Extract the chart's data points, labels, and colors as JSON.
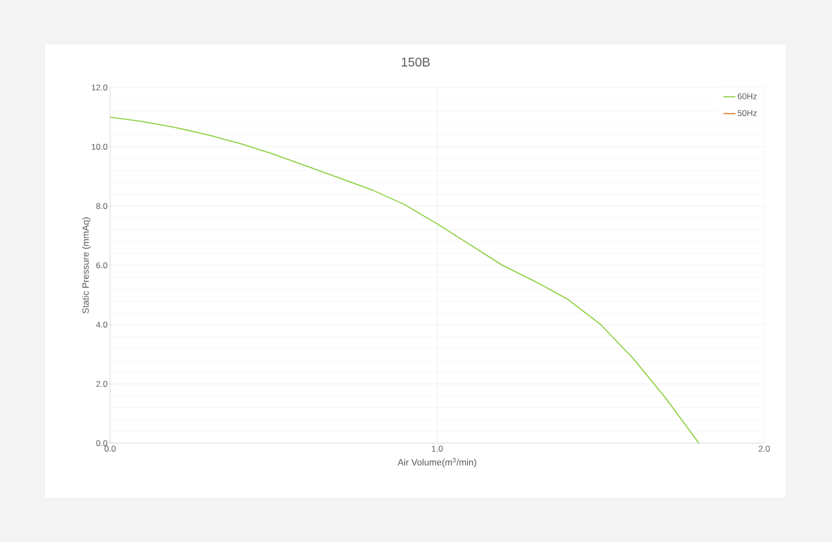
{
  "chart_data": {
    "type": "line",
    "title": "150B",
    "xlabel": "Air Volume(m$^{3}$/min)",
    "ylabel": "Static Pressure (mmAq)",
    "x": [
      0,
      0.1,
      0.2,
      0.3,
      0.4,
      0.5,
      0.6,
      0.7,
      0.8,
      0.9,
      1.0,
      1.1,
      1.2,
      1.3,
      1.4,
      1.5,
      1.6,
      1.7,
      1.8
    ],
    "series": [
      {
        "name": "60Hz",
        "color": "#8ccf3f",
        "values": [
          11.0,
          10.85,
          10.65,
          10.4,
          10.1,
          9.75,
          9.35,
          8.95,
          8.55,
          8.05,
          7.4,
          6.7,
          6.0,
          5.45,
          4.85,
          4.0,
          2.85,
          1.5,
          0.0
        ]
      },
      {
        "name": "50Hz",
        "color": "#ed7d31",
        "values": [
          null,
          null,
          null,
          null,
          null,
          null,
          null,
          null,
          null,
          null,
          null,
          null,
          null,
          null,
          null,
          null,
          null,
          null,
          null
        ]
      }
    ],
    "xlim": [
      0,
      2
    ],
    "ylim": [
      0,
      12
    ],
    "xticks": [
      {
        "value": 0,
        "label": "0.0"
      },
      {
        "value": 1,
        "label": "1.0"
      },
      {
        "value": 2,
        "label": "2.0"
      }
    ],
    "yticks": [
      {
        "value": 0,
        "label": "0.0"
      },
      {
        "value": 2,
        "label": "2.0"
      },
      {
        "value": 4,
        "label": "4.0"
      },
      {
        "value": 6,
        "label": "6.0"
      },
      {
        "value": 8,
        "label": "8.0"
      },
      {
        "value": 10,
        "label": "10.0"
      },
      {
        "value": 12,
        "label": "12.0"
      }
    ],
    "grid": true,
    "legend": "top right",
    "marker": "none",
    "line_style": "solid"
  }
}
